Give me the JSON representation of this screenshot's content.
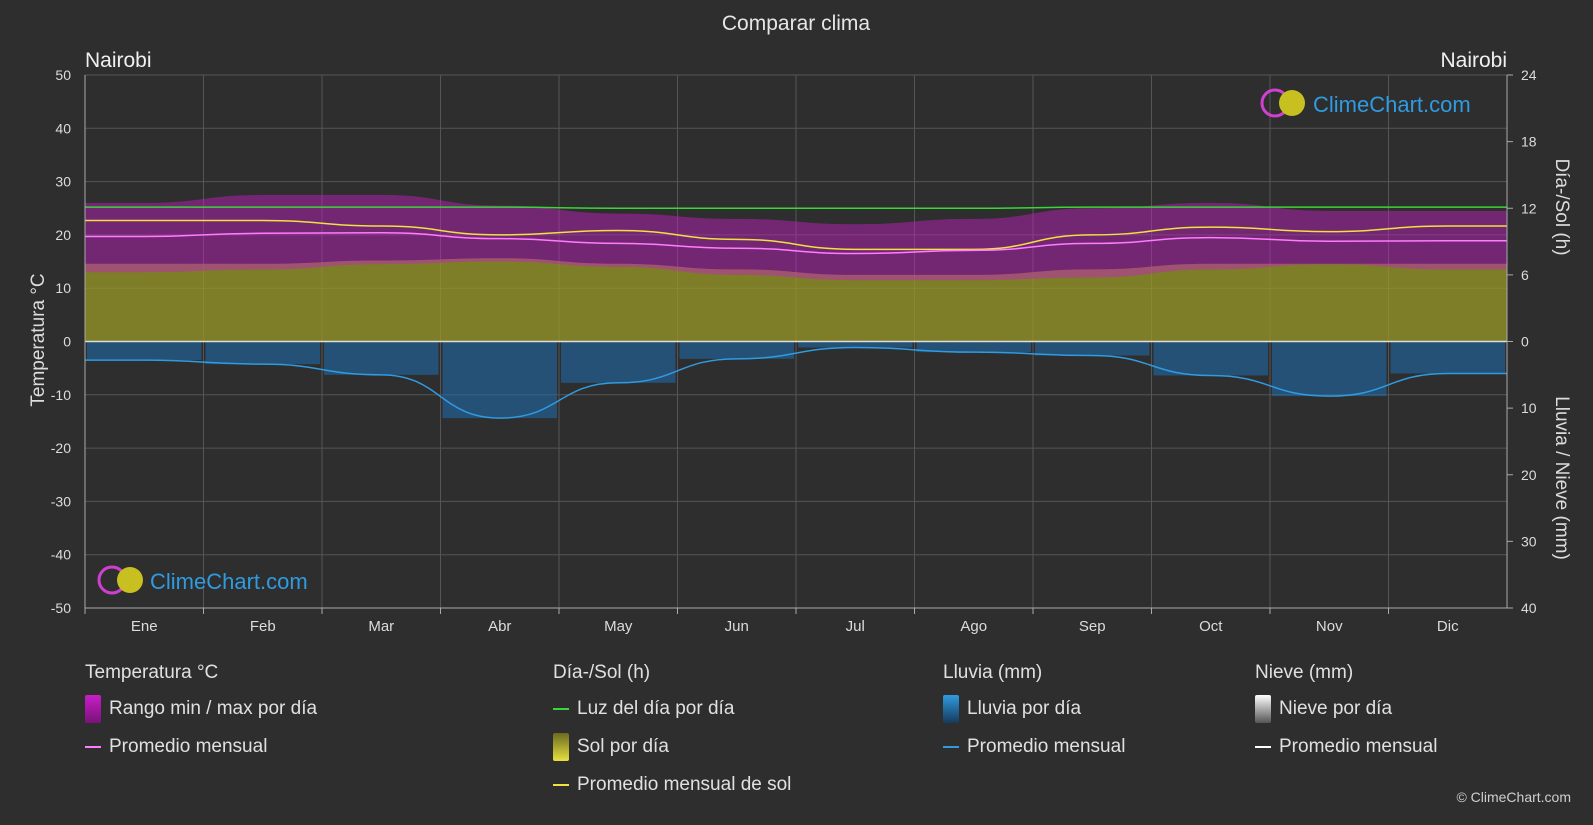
{
  "title": "Comparar clima",
  "location_left": "Nairobi",
  "location_right": "Nairobi",
  "axis_left_label": "Temperatura °C",
  "axis_right_top_label": "Día-/Sol (h)",
  "axis_right_bottom_label": "Lluvia / Nieve (mm)",
  "brand": "ClimeChart.com",
  "copyright": "© ClimeChart.com",
  "colors": {
    "background": "#2e2e2e",
    "temp_range": "#c81ec8",
    "temp_avg": "#ff7bff",
    "daylight": "#39d639",
    "sunshine": "#9a9a28",
    "sunshine_avg": "#f0e040",
    "rain": "#1f6fb4",
    "rain_avg": "#2f9be0",
    "snow_avg": "#ffffff",
    "brand": "#2f9be0"
  },
  "legend": {
    "temperature": {
      "title": "Temperatura °C",
      "range_label": "Rango min / max por día",
      "avg_label": "Promedio mensual"
    },
    "sun": {
      "title": "Día-/Sol (h)",
      "daylight_label": "Luz del día por día",
      "sunshine_label": "Sol por día",
      "sunshine_avg_label": "Promedio mensual de sol"
    },
    "rain": {
      "title": "Lluvia (mm)",
      "rain_label": "Lluvia por día",
      "avg_label": "Promedio mensual"
    },
    "snow": {
      "title": "Nieve (mm)",
      "snow_label": "Nieve por día",
      "avg_label": "Promedio mensual"
    }
  },
  "chart_data": {
    "type": "area",
    "title": "Comparar clima",
    "categories": [
      "Ene",
      "Feb",
      "Mar",
      "Abr",
      "May",
      "Jun",
      "Jul",
      "Ago",
      "Sep",
      "Oct",
      "Nov",
      "Dic"
    ],
    "y_left": {
      "label": "Temperatura °C",
      "range": [
        -50,
        50
      ],
      "ticks": [
        50,
        40,
        30,
        20,
        10,
        0,
        -10,
        -20,
        -30,
        -40,
        -50
      ]
    },
    "y_right_top": {
      "label": "Día-/Sol (h)",
      "range": [
        0,
        24
      ],
      "ticks": [
        24,
        18,
        12,
        6,
        0
      ]
    },
    "y_right_bottom": {
      "label": "Lluvia / Nieve (mm)",
      "range": [
        0,
        40
      ],
      "ticks": [
        0,
        10,
        20,
        30,
        40
      ]
    },
    "grid": true,
    "series": [
      {
        "name": "Rango min / max por día",
        "kind": "band",
        "axis": "temp",
        "min": [
          13.0,
          13.5,
          14.5,
          15.0,
          14.0,
          12.5,
          11.5,
          11.5,
          12.0,
          13.5,
          14.5,
          13.5
        ],
        "max": [
          26.0,
          27.5,
          27.5,
          25.5,
          24.0,
          23.0,
          22.0,
          23.0,
          25.0,
          26.0,
          24.5,
          24.5
        ]
      },
      {
        "name": "Promedio mensual",
        "kind": "line",
        "axis": "temp",
        "values": [
          19.7,
          20.3,
          20.4,
          19.3,
          18.4,
          17.5,
          16.5,
          17.1,
          18.4,
          19.5,
          18.8,
          18.9
        ]
      },
      {
        "name": "Luz del día por día",
        "kind": "line",
        "axis": "sun",
        "values": [
          12.1,
          12.1,
          12.1,
          12.1,
          12.0,
          12.0,
          12.0,
          12.0,
          12.1,
          12.1,
          12.1,
          12.1
        ]
      },
      {
        "name": "Sol por día",
        "kind": "band",
        "axis": "sun",
        "values": [
          7.0,
          7.0,
          7.3,
          7.5,
          7.0,
          6.5,
          6.0,
          6.0,
          6.5,
          7.0,
          7.0,
          7.0
        ]
      },
      {
        "name": "Promedio mensual de sol",
        "kind": "line",
        "axis": "sun",
        "values": [
          10.9,
          10.9,
          10.4,
          9.6,
          10.0,
          9.2,
          8.3,
          8.3,
          9.6,
          10.3,
          9.9,
          10.4
        ]
      },
      {
        "name": "Lluvia por día",
        "kind": "bars",
        "axis": "rain",
        "values": [
          2.8,
          3.4,
          5.0,
          11.5,
          6.2,
          2.6,
          0.9,
          1.6,
          2.1,
          5.1,
          8.2,
          4.8
        ]
      },
      {
        "name": "Promedio mensual",
        "kind": "line",
        "axis": "rain",
        "values": [
          2.8,
          3.4,
          5.0,
          11.5,
          6.2,
          2.6,
          0.9,
          1.6,
          2.1,
          5.1,
          8.2,
          4.8
        ]
      }
    ]
  }
}
